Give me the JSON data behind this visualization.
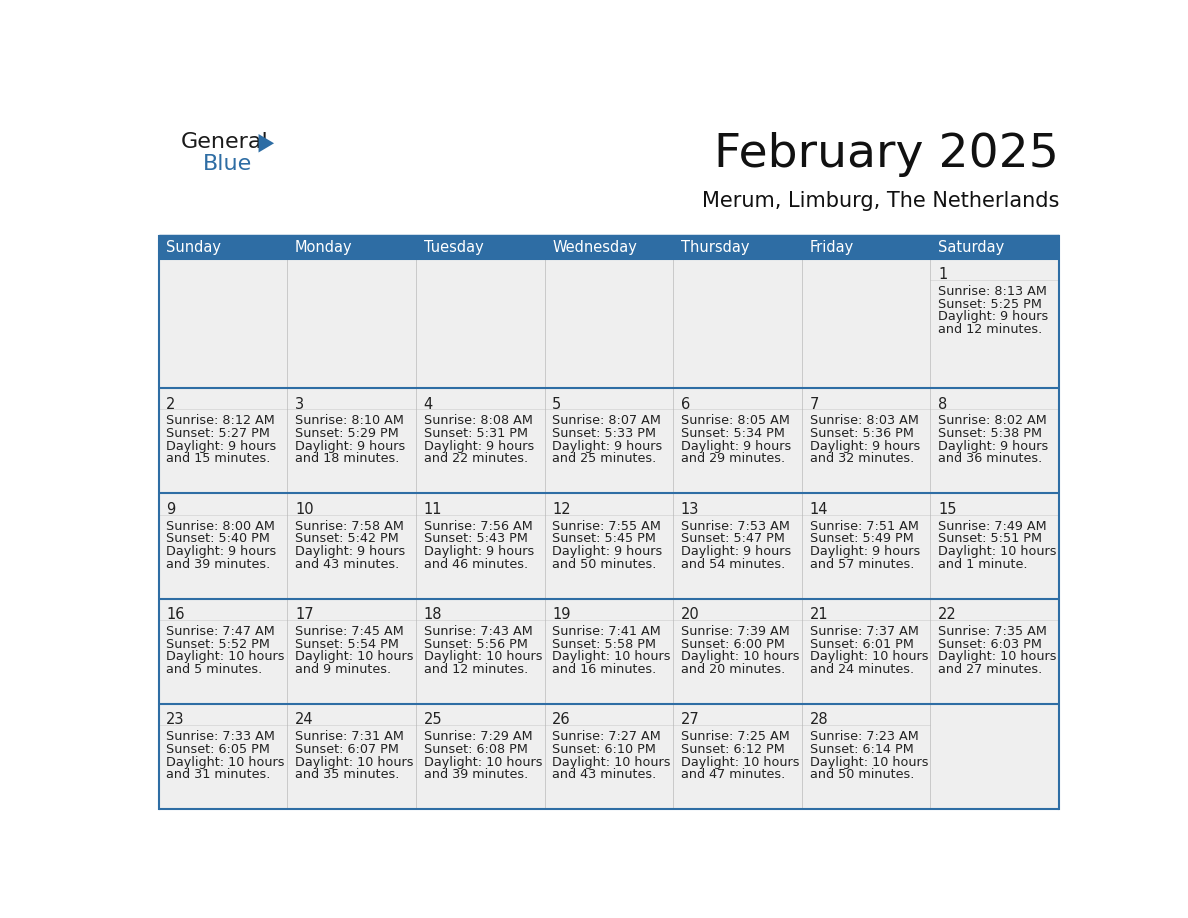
{
  "title": "February 2025",
  "subtitle": "Merum, Limburg, The Netherlands",
  "days_of_week": [
    "Sunday",
    "Monday",
    "Tuesday",
    "Wednesday",
    "Thursday",
    "Friday",
    "Saturday"
  ],
  "header_bg": "#2E6DA4",
  "header_text": "#FFFFFF",
  "cell_bg": "#EFEFEF",
  "border_color": "#2E6DA4",
  "day_number_color": "#222222",
  "text_color": "#222222",
  "logo_general_color": "#1a1a1a",
  "logo_blue_color": "#2E6DA4",
  "calendar": [
    [
      null,
      null,
      null,
      null,
      null,
      null,
      {
        "day": 1,
        "sunrise": "8:13 AM",
        "sunset": "5:25 PM",
        "daylight_line1": "Daylight: 9 hours",
        "daylight_line2": "and 12 minutes."
      }
    ],
    [
      {
        "day": 2,
        "sunrise": "8:12 AM",
        "sunset": "5:27 PM",
        "daylight_line1": "Daylight: 9 hours",
        "daylight_line2": "and 15 minutes."
      },
      {
        "day": 3,
        "sunrise": "8:10 AM",
        "sunset": "5:29 PM",
        "daylight_line1": "Daylight: 9 hours",
        "daylight_line2": "and 18 minutes."
      },
      {
        "day": 4,
        "sunrise": "8:08 AM",
        "sunset": "5:31 PM",
        "daylight_line1": "Daylight: 9 hours",
        "daylight_line2": "and 22 minutes."
      },
      {
        "day": 5,
        "sunrise": "8:07 AM",
        "sunset": "5:33 PM",
        "daylight_line1": "Daylight: 9 hours",
        "daylight_line2": "and 25 minutes."
      },
      {
        "day": 6,
        "sunrise": "8:05 AM",
        "sunset": "5:34 PM",
        "daylight_line1": "Daylight: 9 hours",
        "daylight_line2": "and 29 minutes."
      },
      {
        "day": 7,
        "sunrise": "8:03 AM",
        "sunset": "5:36 PM",
        "daylight_line1": "Daylight: 9 hours",
        "daylight_line2": "and 32 minutes."
      },
      {
        "day": 8,
        "sunrise": "8:02 AM",
        "sunset": "5:38 PM",
        "daylight_line1": "Daylight: 9 hours",
        "daylight_line2": "and 36 minutes."
      }
    ],
    [
      {
        "day": 9,
        "sunrise": "8:00 AM",
        "sunset": "5:40 PM",
        "daylight_line1": "Daylight: 9 hours",
        "daylight_line2": "and 39 minutes."
      },
      {
        "day": 10,
        "sunrise": "7:58 AM",
        "sunset": "5:42 PM",
        "daylight_line1": "Daylight: 9 hours",
        "daylight_line2": "and 43 minutes."
      },
      {
        "day": 11,
        "sunrise": "7:56 AM",
        "sunset": "5:43 PM",
        "daylight_line1": "Daylight: 9 hours",
        "daylight_line2": "and 46 minutes."
      },
      {
        "day": 12,
        "sunrise": "7:55 AM",
        "sunset": "5:45 PM",
        "daylight_line1": "Daylight: 9 hours",
        "daylight_line2": "and 50 minutes."
      },
      {
        "day": 13,
        "sunrise": "7:53 AM",
        "sunset": "5:47 PM",
        "daylight_line1": "Daylight: 9 hours",
        "daylight_line2": "and 54 minutes."
      },
      {
        "day": 14,
        "sunrise": "7:51 AM",
        "sunset": "5:49 PM",
        "daylight_line1": "Daylight: 9 hours",
        "daylight_line2": "and 57 minutes."
      },
      {
        "day": 15,
        "sunrise": "7:49 AM",
        "sunset": "5:51 PM",
        "daylight_line1": "Daylight: 10 hours",
        "daylight_line2": "and 1 minute."
      }
    ],
    [
      {
        "day": 16,
        "sunrise": "7:47 AM",
        "sunset": "5:52 PM",
        "daylight_line1": "Daylight: 10 hours",
        "daylight_line2": "and 5 minutes."
      },
      {
        "day": 17,
        "sunrise": "7:45 AM",
        "sunset": "5:54 PM",
        "daylight_line1": "Daylight: 10 hours",
        "daylight_line2": "and 9 minutes."
      },
      {
        "day": 18,
        "sunrise": "7:43 AM",
        "sunset": "5:56 PM",
        "daylight_line1": "Daylight: 10 hours",
        "daylight_line2": "and 12 minutes."
      },
      {
        "day": 19,
        "sunrise": "7:41 AM",
        "sunset": "5:58 PM",
        "daylight_line1": "Daylight: 10 hours",
        "daylight_line2": "and 16 minutes."
      },
      {
        "day": 20,
        "sunrise": "7:39 AM",
        "sunset": "6:00 PM",
        "daylight_line1": "Daylight: 10 hours",
        "daylight_line2": "and 20 minutes."
      },
      {
        "day": 21,
        "sunrise": "7:37 AM",
        "sunset": "6:01 PM",
        "daylight_line1": "Daylight: 10 hours",
        "daylight_line2": "and 24 minutes."
      },
      {
        "day": 22,
        "sunrise": "7:35 AM",
        "sunset": "6:03 PM",
        "daylight_line1": "Daylight: 10 hours",
        "daylight_line2": "and 27 minutes."
      }
    ],
    [
      {
        "day": 23,
        "sunrise": "7:33 AM",
        "sunset": "6:05 PM",
        "daylight_line1": "Daylight: 10 hours",
        "daylight_line2": "and 31 minutes."
      },
      {
        "day": 24,
        "sunrise": "7:31 AM",
        "sunset": "6:07 PM",
        "daylight_line1": "Daylight: 10 hours",
        "daylight_line2": "and 35 minutes."
      },
      {
        "day": 25,
        "sunrise": "7:29 AM",
        "sunset": "6:08 PM",
        "daylight_line1": "Daylight: 10 hours",
        "daylight_line2": "and 39 minutes."
      },
      {
        "day": 26,
        "sunrise": "7:27 AM",
        "sunset": "6:10 PM",
        "daylight_line1": "Daylight: 10 hours",
        "daylight_line2": "and 43 minutes."
      },
      {
        "day": 27,
        "sunrise": "7:25 AM",
        "sunset": "6:12 PM",
        "daylight_line1": "Daylight: 10 hours",
        "daylight_line2": "and 47 minutes."
      },
      {
        "day": 28,
        "sunrise": "7:23 AM",
        "sunset": "6:14 PM",
        "daylight_line1": "Daylight: 10 hours",
        "daylight_line2": "and 50 minutes."
      },
      null
    ]
  ]
}
